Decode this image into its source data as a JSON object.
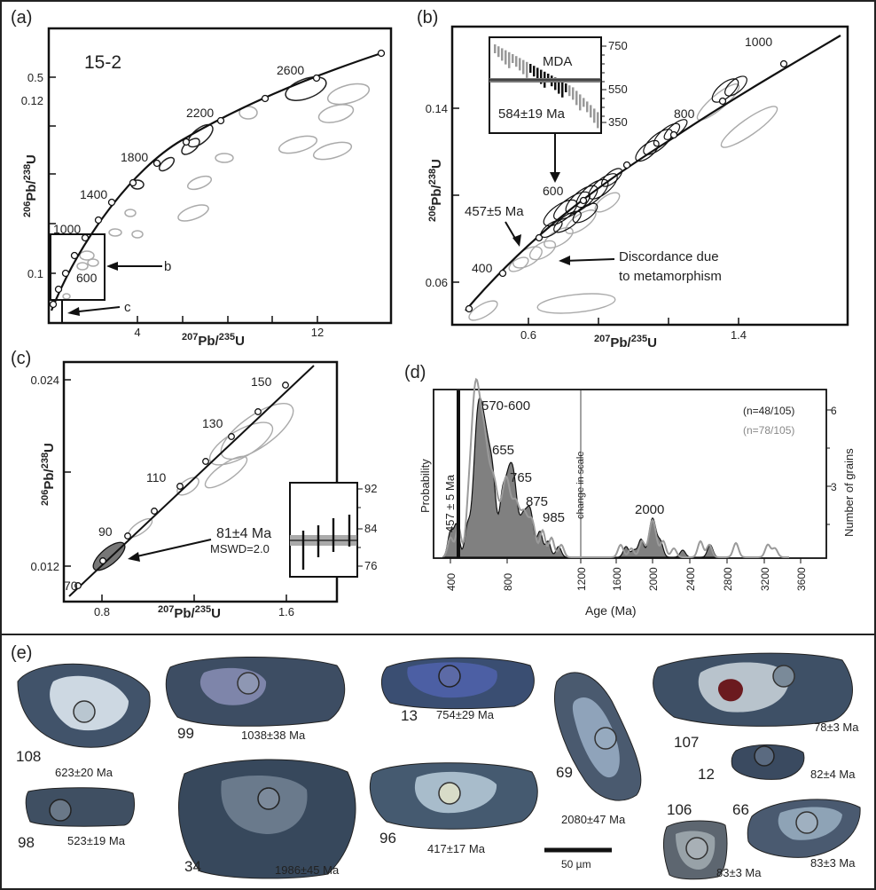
{
  "panels": {
    "a": {
      "label": "(a)",
      "sample": "15-2",
      "ylabel_pre": "206",
      "ylabel_mid": "Pb/",
      "ylabel_sup2": "238",
      "ylabel_post": "U",
      "xlabel_pre": "207",
      "xlabel_mid": "Pb/",
      "xlabel_sup2": "235",
      "xlabel_post": "U",
      "yticks": [
        "0.5",
        "0.12",
        "0.1"
      ],
      "xticks": [
        "4",
        "12"
      ],
      "age_labels": [
        "2600",
        "2200",
        "1800",
        "1400",
        "1000",
        "600"
      ],
      "callouts": [
        "b",
        "c"
      ]
    },
    "b": {
      "label": "(b)",
      "yticks": [
        "0.14",
        "0.06"
      ],
      "xticks": [
        "0.6",
        "1.4"
      ],
      "age_labels": [
        "1000",
        "800",
        "600",
        "400"
      ],
      "inset_title": "MDA",
      "inset_age": "584±19 Ma",
      "inset_ticks": [
        "750",
        "550",
        "350"
      ],
      "annot_age": "457±5 Ma",
      "annot_discordance_1": "Discordance due",
      "annot_discordance_2": "to metamorphism"
    },
    "c": {
      "label": "(c)",
      "yticks": [
        "0.024",
        "0.012"
      ],
      "xticks": [
        "0.8",
        "1.6"
      ],
      "age_labels": [
        "150",
        "130",
        "110",
        "90",
        "70"
      ],
      "annot_age": "81±4 Ma",
      "annot_mswd": "MSWD=2.0",
      "inset_ticks": [
        "92",
        "84",
        "76"
      ]
    },
    "d": {
      "label": "(d)",
      "ylabel_left": "Probability",
      "ylabel_right": "Number of grains",
      "xlabel": "Age (Ma)",
      "xticks": [
        "400",
        "800",
        "1200",
        "1600",
        "2000",
        "2400",
        "2800",
        "3200",
        "3600"
      ],
      "right_ticks": [
        "6",
        "3"
      ],
      "n_black": "(n=48/105)",
      "n_gray": "(n=78/105)",
      "vertical_label": "457 ± 5 Ma",
      "scale_note": "change in scale",
      "peak_labels": [
        "570-600",
        "655",
        "765",
        "875",
        "985",
        "2000"
      ]
    },
    "e": {
      "label": "(e)",
      "scale_bar": "50 µm",
      "grains": [
        {
          "id": "108",
          "age": "623±20 Ma"
        },
        {
          "id": "99",
          "age": "1038±38 Ma"
        },
        {
          "id": "13",
          "age": "754±29 Ma"
        },
        {
          "id": "69",
          "age": "2080±47 Ma"
        },
        {
          "id": "107",
          "age": "78±3 Ma"
        },
        {
          "id": "12",
          "age": "82±4 Ma"
        },
        {
          "id": "98",
          "age": "523±19 Ma"
        },
        {
          "id": "34",
          "age": "1986±45 Ma"
        },
        {
          "id": "96",
          "age": "417±17 Ma"
        },
        {
          "id": "106",
          "age": "83±3 Ma"
        },
        {
          "id": "66",
          "age": "83±3 Ma"
        }
      ]
    }
  },
  "chart_data": [
    {
      "type": "scatter",
      "panel": "a",
      "x_axis": "207Pb/235U",
      "y_axis": "206Pb/238U",
      "concordia_age_marks_Ma": [
        2600,
        2200,
        1800,
        1400,
        1000,
        600
      ]
    },
    {
      "type": "scatter",
      "panel": "b",
      "x_axis": "207Pb/235U",
      "y_axis": "206Pb/238U",
      "concordia_age_marks_Ma": [
        1000,
        800,
        600,
        400
      ],
      "mda_Ma": 584,
      "mda_error_Ma": 19,
      "young_age_Ma": 457
    },
    {
      "type": "scatter",
      "panel": "c",
      "x_axis": "207Pb/235U",
      "y_axis": "206Pb/238U",
      "concordia_age_marks_Ma": [
        150,
        130,
        110,
        90,
        70
      ],
      "mean_age_Ma": 81,
      "mean_error_Ma": 4,
      "mswd": 2.0
    },
    {
      "type": "area",
      "panel": "d",
      "xlabel": "Age (Ma)",
      "xlim": [
        400,
        3600
      ],
      "series": [
        {
          "name": "(n=48/105)",
          "color": "#5a5a5a"
        },
        {
          "name": "(n=78/105)",
          "color": "#9a9a9a"
        }
      ],
      "peaks_Ma": [
        570,
        600,
        655,
        765,
        875,
        985,
        2000
      ]
    }
  ],
  "colors": {
    "black_series": "#555555",
    "gray_series": "#9a9a9a",
    "ellipse_gray": "#a8a8a8"
  }
}
